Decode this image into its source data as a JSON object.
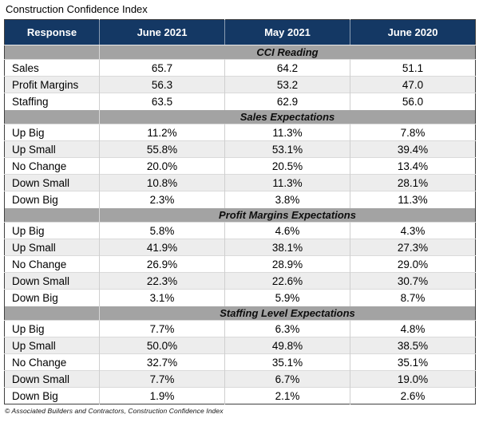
{
  "chart_data": {
    "type": "table",
    "title": "Construction Confidence Index",
    "columns": [
      "Response",
      "June 2021",
      "May 2021",
      "June 2020"
    ],
    "sections": [
      {
        "label": "CCI Reading",
        "rows": [
          {
            "label": "Sales",
            "values": [
              "65.7",
              "64.2",
              "51.1"
            ]
          },
          {
            "label": "Profit Margins",
            "values": [
              "56.3",
              "53.2",
              "47.0"
            ]
          },
          {
            "label": "Staffing",
            "values": [
              "63.5",
              "62.9",
              "56.0"
            ]
          }
        ]
      },
      {
        "label": "Sales Expectations",
        "rows": [
          {
            "label": "Up Big",
            "values": [
              "11.2%",
              "11.3%",
              "7.8%"
            ]
          },
          {
            "label": "Up Small",
            "values": [
              "55.8%",
              "53.1%",
              "39.4%"
            ]
          },
          {
            "label": "No Change",
            "values": [
              "20.0%",
              "20.5%",
              "13.4%"
            ]
          },
          {
            "label": "Down Small",
            "values": [
              "10.8%",
              "11.3%",
              "28.1%"
            ]
          },
          {
            "label": "Down Big",
            "values": [
              "2.3%",
              "3.8%",
              "11.3%"
            ]
          }
        ]
      },
      {
        "label": "Profit Margins Expectations",
        "rows": [
          {
            "label": "Up Big",
            "values": [
              "5.8%",
              "4.6%",
              "4.3%"
            ]
          },
          {
            "label": "Up Small",
            "values": [
              "41.9%",
              "38.1%",
              "27.3%"
            ]
          },
          {
            "label": "No Change",
            "values": [
              "26.9%",
              "28.9%",
              "29.0%"
            ]
          },
          {
            "label": "Down Small",
            "values": [
              "22.3%",
              "22.6%",
              "30.7%"
            ]
          },
          {
            "label": "Down Big",
            "values": [
              "3.1%",
              "5.9%",
              "8.7%"
            ]
          }
        ]
      },
      {
        "label": "Staffing Level Expectations",
        "rows": [
          {
            "label": "Up Big",
            "values": [
              "7.7%",
              "6.3%",
              "4.8%"
            ]
          },
          {
            "label": "Up Small",
            "values": [
              "50.0%",
              "49.8%",
              "38.5%"
            ]
          },
          {
            "label": "No Change",
            "values": [
              "32.7%",
              "35.1%",
              "35.1%"
            ]
          },
          {
            "label": "Down Small",
            "values": [
              "7.7%",
              "6.7%",
              "19.0%"
            ]
          },
          {
            "label": "Down Big",
            "values": [
              "1.9%",
              "2.1%",
              "2.6%"
            ]
          }
        ]
      }
    ],
    "footnote": "© Associated Builders and Contractors, Construction Confidence Index"
  },
  "colors": {
    "header_bg": "#143864",
    "header_text": "#ffffff",
    "section_band_bg": "#a3a3a3",
    "row_stripe_bg": "#ededed",
    "grid_line": "#cfcfcf",
    "outer_border": "#404040"
  }
}
